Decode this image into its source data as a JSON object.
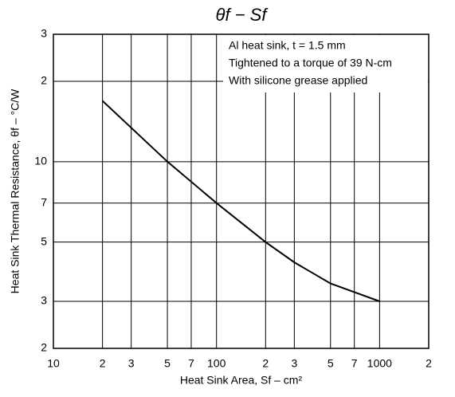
{
  "chart_data": {
    "type": "line",
    "title": "θf  −  Sf",
    "annotations": [
      "Al heat sink, t = 1.5 mm",
      "Tightened to a torque of 39 N-cm",
      "With silicone grease applied"
    ],
    "x_label": "Heat Sink Area, Sf – cm²",
    "y_label": "Heat Sink Thermal Resistance, θf – °C/W",
    "x_log": true,
    "y_log": true,
    "grid": true,
    "xlim": [
      10,
      2000
    ],
    "ylim": [
      2,
      30
    ],
    "xticks": [
      10,
      {
        "value": 20,
        "label": "2"
      },
      {
        "value": 30,
        "label": "3"
      },
      {
        "value": 50,
        "label": "5"
      },
      {
        "value": 70,
        "label": "7"
      },
      100,
      {
        "value": 200,
        "label": "2"
      },
      {
        "value": 300,
        "label": "3"
      },
      {
        "value": 500,
        "label": "5"
      },
      {
        "value": 700,
        "label": "7"
      },
      1000,
      {
        "value": 2000,
        "label": "2"
      }
    ],
    "yticks": [
      2,
      3,
      5,
      7,
      10,
      {
        "value": 20,
        "label": "2"
      },
      {
        "value": 30,
        "label": "3"
      }
    ],
    "series": [
      {
        "color": "#000000",
        "x": [
          20,
          50,
          100,
          200,
          300,
          500,
          1000
        ],
        "values": [
          16.9,
          10,
          7,
          5,
          4.2,
          3.5,
          3.0
        ]
      }
    ]
  }
}
